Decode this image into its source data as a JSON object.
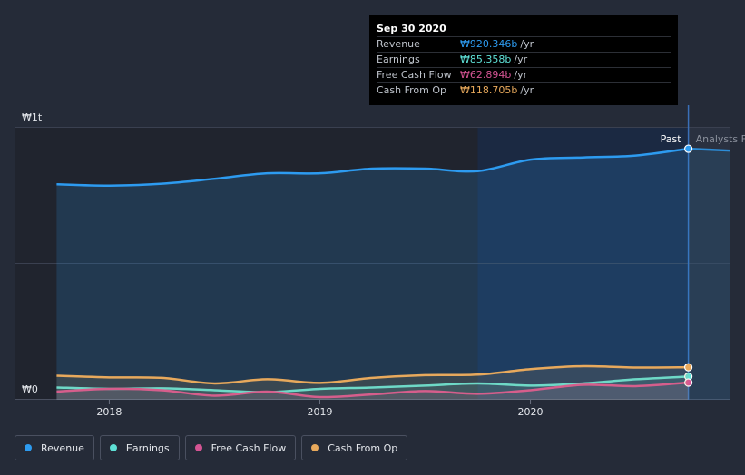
{
  "chart_data": {
    "type": "area",
    "currency": "₩",
    "yaxis": {
      "top_label": "₩1t",
      "bottom_label": "₩0",
      "ylim": [
        0,
        1000
      ]
    },
    "x_ticks": [
      {
        "label": "2018",
        "t": 2018.0
      },
      {
        "label": "2019",
        "t": 2019.0
      },
      {
        "label": "2020",
        "t": 2020.0
      }
    ],
    "xlim": [
      2017.55,
      2020.95
    ],
    "past_label": "Past",
    "analysts_label": "Analysts F",
    "highlight_start": 2019.75,
    "current_t": 2020.75,
    "series": [
      {
        "name": "Revenue",
        "color": "#2d9bf0",
        "points": [
          [
            2017.75,
            790
          ],
          [
            2018.0,
            785
          ],
          [
            2018.25,
            792
          ],
          [
            2018.5,
            810
          ],
          [
            2018.75,
            830
          ],
          [
            2019.0,
            830
          ],
          [
            2019.25,
            847
          ],
          [
            2019.5,
            847
          ],
          [
            2019.75,
            838
          ],
          [
            2020.0,
            880
          ],
          [
            2020.25,
            888
          ],
          [
            2020.5,
            895
          ],
          [
            2020.75,
            920
          ]
        ],
        "forecast": [
          [
            2020.75,
            920
          ],
          [
            2020.95,
            913
          ]
        ]
      },
      {
        "name": "Earnings",
        "color": "#5ee0d6",
        "points": [
          [
            2017.75,
            45
          ],
          [
            2018.0,
            40
          ],
          [
            2018.25,
            42
          ],
          [
            2018.5,
            35
          ],
          [
            2018.75,
            28
          ],
          [
            2019.0,
            40
          ],
          [
            2019.25,
            45
          ],
          [
            2019.5,
            52
          ],
          [
            2019.75,
            60
          ],
          [
            2020.0,
            52
          ],
          [
            2020.25,
            60
          ],
          [
            2020.5,
            75
          ],
          [
            2020.75,
            85
          ]
        ]
      },
      {
        "name": "Free Cash Flow",
        "color": "#d45493",
        "points": [
          [
            2017.75,
            30
          ],
          [
            2018.0,
            40
          ],
          [
            2018.25,
            35
          ],
          [
            2018.5,
            15
          ],
          [
            2018.75,
            30
          ],
          [
            2019.0,
            10
          ],
          [
            2019.25,
            20
          ],
          [
            2019.5,
            32
          ],
          [
            2019.75,
            22
          ],
          [
            2020.0,
            35
          ],
          [
            2020.25,
            55
          ],
          [
            2020.5,
            50
          ],
          [
            2020.75,
            63
          ]
        ]
      },
      {
        "name": "Cash From Op",
        "color": "#e8a95c",
        "points": [
          [
            2017.75,
            88
          ],
          [
            2018.0,
            82
          ],
          [
            2018.25,
            80
          ],
          [
            2018.5,
            60
          ],
          [
            2018.75,
            75
          ],
          [
            2019.0,
            62
          ],
          [
            2019.25,
            80
          ],
          [
            2019.5,
            90
          ],
          [
            2019.75,
            92
          ],
          [
            2020.0,
            112
          ],
          [
            2020.25,
            123
          ],
          [
            2020.5,
            118
          ],
          [
            2020.75,
            119
          ]
        ]
      }
    ]
  },
  "tooltip": {
    "date": "Sep 30 2020",
    "rows": [
      {
        "label": "Revenue",
        "value": "₩920.346b",
        "unit": "/yr",
        "color": "#2d9bf0"
      },
      {
        "label": "Earnings",
        "value": "₩85.358b",
        "unit": "/yr",
        "color": "#5ee0d6"
      },
      {
        "label": "Free Cash Flow",
        "value": "₩62.894b",
        "unit": "/yr",
        "color": "#d45493"
      },
      {
        "label": "Cash From Op",
        "value": "₩118.705b",
        "unit": "/yr",
        "color": "#e8a95c"
      }
    ]
  },
  "legend": [
    {
      "label": "Revenue",
      "color": "#2d9bf0"
    },
    {
      "label": "Earnings",
      "color": "#5ee0d6"
    },
    {
      "label": "Free Cash Flow",
      "color": "#d45493"
    },
    {
      "label": "Cash From Op",
      "color": "#e8a95c"
    }
  ]
}
